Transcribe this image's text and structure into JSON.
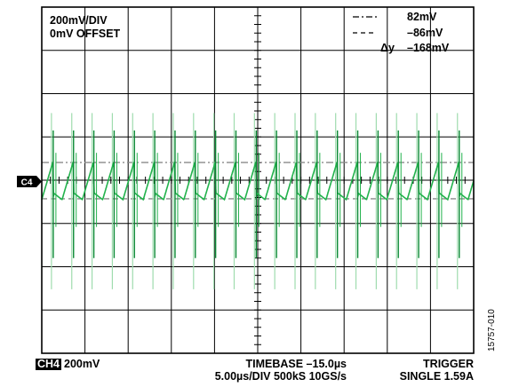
{
  "scope": {
    "scale_label": "200mV/DIV",
    "offset_label": "0mV OFFSET",
    "channel_marker": "C4",
    "channel_badge": "CH4",
    "channel_scale": "200mV",
    "timebase_label": "TIMEBASE –15.0µs",
    "timebase_detail": "5.00µs/DIV  500kS 10GS/s",
    "trigger_label": "TRIGGER",
    "trigger_detail": "SINGLE 1.59A",
    "figure_id": "15757-010"
  },
  "cursor_legend": {
    "cursor1_value": "82mV",
    "cursor2_value": "–86mV",
    "delta_symbol": "Δy",
    "delta_value": "–168mV"
  },
  "colors": {
    "trace": "#22b24c",
    "trace_spike": "#0b8a35",
    "trace_shadow": "#9fdcae",
    "cursor": "#8a8a8a",
    "grid": "#000000"
  },
  "chart_data": {
    "type": "line",
    "xlabel": "",
    "ylabel": "",
    "x_unit": "µs",
    "y_unit": "mV",
    "xlim": [
      -25,
      25
    ],
    "ylim": [
      -800,
      800
    ],
    "x_divisions": 10,
    "y_divisions": 8,
    "grid": true,
    "cursors_mV": [
      82,
      -86
    ],
    "delta_mV": -168,
    "ripple_period_us": 2.35,
    "ripple_low_mV": -90,
    "ripple_high_mV": 85,
    "spike_low_mV": -360,
    "spike_high_mV": 230,
    "series": [
      {
        "name": "CH4"
      }
    ]
  }
}
